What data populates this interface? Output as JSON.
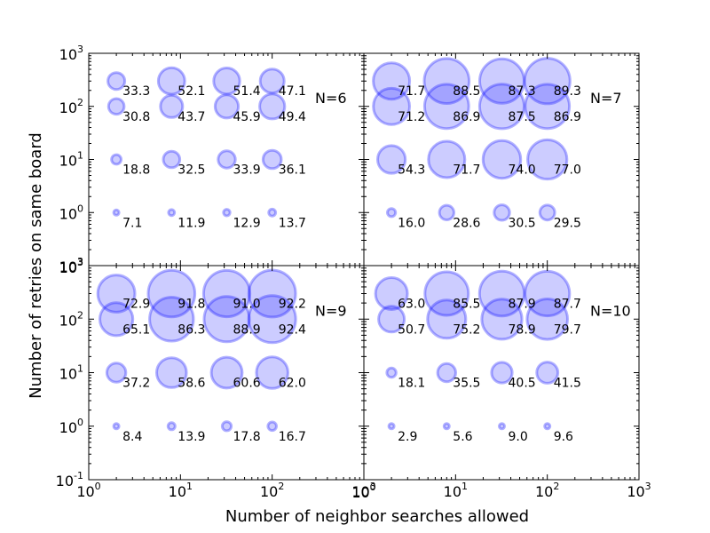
{
  "chart_data": {
    "type": "scatter",
    "xlabel": "Number of neighbor searches allowed",
    "ylabel": "Number of retries on same board",
    "x_scale": "log",
    "y_scale": "log",
    "xlim": [
      1,
      1000
    ],
    "ylim": [
      0.1,
      1000
    ],
    "bubble_color": "#0000ff",
    "x": [
      2,
      8,
      32,
      100
    ],
    "y": [
      300,
      100,
      10,
      1
    ],
    "panels": [
      {
        "label": "N=6",
        "values": [
          [
            33.3,
            52.1,
            51.4,
            47.1
          ],
          [
            30.8,
            43.7,
            45.9,
            49.4
          ],
          [
            18.8,
            32.5,
            33.9,
            36.1
          ],
          [
            7.1,
            11.9,
            12.9,
            13.7
          ]
        ]
      },
      {
        "label": "N=7",
        "values": [
          [
            71.7,
            88.5,
            87.3,
            89.3
          ],
          [
            71.2,
            86.9,
            87.5,
            86.9
          ],
          [
            54.3,
            71.7,
            74.0,
            77.0
          ],
          [
            16.0,
            28.6,
            30.5,
            29.5
          ]
        ]
      },
      {
        "label": "N=9",
        "values": [
          [
            72.9,
            91.8,
            91.0,
            92.2
          ],
          [
            65.1,
            86.3,
            88.9,
            92.4
          ],
          [
            37.2,
            58.6,
            60.6,
            62.0
          ],
          [
            8.4,
            13.9,
            17.8,
            16.7
          ]
        ]
      },
      {
        "label": "N=10",
        "values": [
          [
            63.0,
            85.5,
            87.9,
            87.7
          ],
          [
            50.7,
            75.2,
            78.9,
            79.7
          ],
          [
            18.1,
            35.5,
            40.5,
            41.5
          ],
          [
            2.9,
            5.6,
            9.0,
            9.6
          ]
        ]
      }
    ]
  }
}
